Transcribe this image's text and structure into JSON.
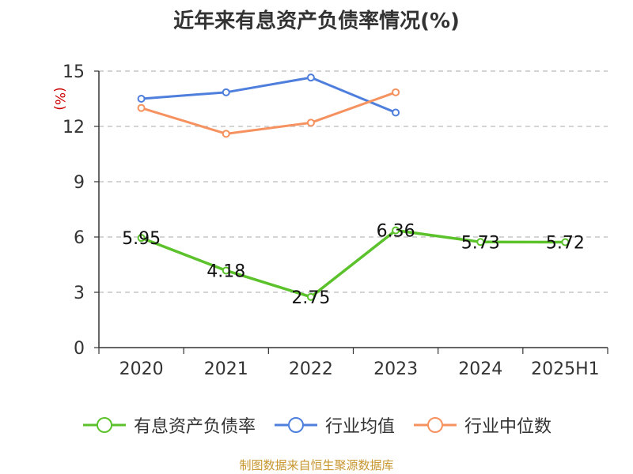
{
  "title": "近年来有息资产负债率情况(%)",
  "source_text": "制图数据来自恒生聚源数据库",
  "colors": {
    "series_main": "#5bc22b",
    "series_avg": "#4f7fdc",
    "series_median": "#f5925f",
    "grid": "#bbbbbb",
    "axis": "#333333",
    "ylabel": "#cc0000"
  },
  "chart_data": {
    "type": "line",
    "title": "近年来有息资产负债率情况(%)",
    "xlabel": "",
    "ylabel": "(%)",
    "categories": [
      "2020",
      "2021",
      "2022",
      "2023",
      "2024",
      "2025H1"
    ],
    "ylim": [
      0,
      15
    ],
    "yticks": [
      0,
      3,
      6,
      9,
      12,
      15
    ],
    "grid": true,
    "legend_position": "bottom",
    "series": [
      {
        "name": "有息资产负债率",
        "values": [
          5.95,
          4.18,
          2.75,
          6.36,
          5.73,
          5.72
        ],
        "show_labels": true,
        "labels": [
          "5.95",
          "4.18",
          "2.75",
          "6.36",
          "5.73",
          "5.72"
        ]
      },
      {
        "name": "行业均值",
        "values": [
          13.5,
          13.85,
          14.65,
          12.75,
          null,
          null
        ]
      },
      {
        "name": "行业中位数",
        "values": [
          13.0,
          11.6,
          12.2,
          13.85,
          null,
          null
        ]
      }
    ]
  }
}
